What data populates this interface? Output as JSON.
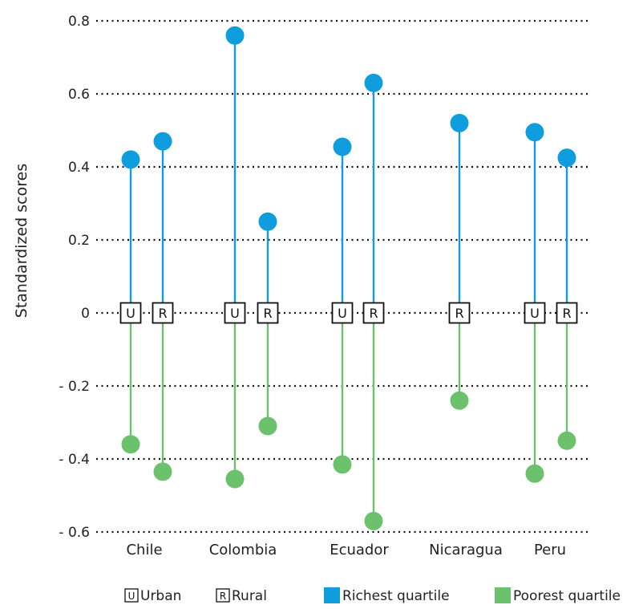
{
  "chart_data": {
    "type": "dot-range",
    "ylabel": "Standardized scores",
    "ylim": [
      -0.6,
      0.8
    ],
    "yticks": [
      {
        "value": 0.8,
        "label": "0.8"
      },
      {
        "value": 0.6,
        "label": "0.6"
      },
      {
        "value": 0.4,
        "label": "0.4"
      },
      {
        "value": 0.2,
        "label": "0.2"
      },
      {
        "value": 0,
        "label": "0"
      },
      {
        "value": -0.2,
        "label": "- 0.2"
      },
      {
        "value": -0.4,
        "label": "- 0.4"
      },
      {
        "value": -0.6,
        "label": "- 0.6"
      }
    ],
    "grid": true,
    "categories": [
      {
        "name": "Chile",
        "groups": [
          {
            "area": "U",
            "richest": 0.42,
            "poorest": -0.36
          },
          {
            "area": "R",
            "richest": 0.47,
            "poorest": -0.435
          }
        ]
      },
      {
        "name": "Colombia",
        "groups": [
          {
            "area": "U",
            "richest": 0.76,
            "poorest": -0.455
          },
          {
            "area": "R",
            "richest": 0.25,
            "poorest": -0.31
          }
        ]
      },
      {
        "name": "Ecuador",
        "groups": [
          {
            "area": "U",
            "richest": 0.455,
            "poorest": -0.415
          },
          {
            "area": "R",
            "richest": 0.63,
            "poorest": -0.57
          }
        ]
      },
      {
        "name": "Nicaragua",
        "groups": [
          {
            "area": "R",
            "richest": 0.52,
            "poorest": -0.24
          }
        ]
      },
      {
        "name": "Peru",
        "groups": [
          {
            "area": "U",
            "richest": 0.495,
            "poorest": -0.44
          },
          {
            "area": "R",
            "richest": 0.425,
            "poorest": -0.35
          }
        ]
      }
    ],
    "legend": {
      "placement": "bottom",
      "items": [
        {
          "marker": "U",
          "label": "Urban",
          "kind": "badge"
        },
        {
          "marker": "R",
          "label": "Rural",
          "kind": "badge"
        },
        {
          "label": "Richest quartile",
          "kind": "swatch",
          "color": "#0f9ddd"
        },
        {
          "label": "Poorest quartile",
          "kind": "swatch",
          "color": "#6cc16c"
        }
      ]
    },
    "colors": {
      "richest": "#0f9ddd",
      "poorest": "#6cc16c"
    }
  }
}
